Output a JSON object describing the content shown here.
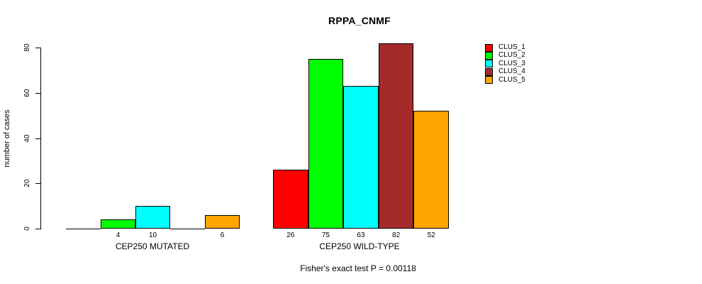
{
  "title": "RPPA_CNMF",
  "subtitle": "Fisher's exact test P = 0.00118",
  "y_axis": {
    "label": "number of cases",
    "ticks": [
      0,
      20,
      40,
      60,
      80
    ]
  },
  "legend": [
    {
      "label": "CLUS_1",
      "color": "#FF0000"
    },
    {
      "label": "CLUS_2",
      "color": "#00FF00"
    },
    {
      "label": "CLUS_3",
      "color": "#00FFFF"
    },
    {
      "label": "CLUS_4",
      "color": "#A52A2A"
    },
    {
      "label": "CLUS_5",
      "color": "#FFA500"
    }
  ],
  "chart_data": {
    "type": "bar",
    "title": "RPPA_CNMF",
    "ylabel": "number of cases",
    "ylim": [
      0,
      80
    ],
    "grid": false,
    "legend_position": "right",
    "categories": [
      "CEP250 MUTATED",
      "CEP250 WILD-TYPE"
    ],
    "series": [
      {
        "name": "CLUS_1",
        "color": "#FF0000",
        "values": [
          0,
          26
        ]
      },
      {
        "name": "CLUS_2",
        "color": "#00FF00",
        "values": [
          4,
          75
        ]
      },
      {
        "name": "CLUS_3",
        "color": "#00FFFF",
        "values": [
          10,
          63
        ]
      },
      {
        "name": "CLUS_4",
        "color": "#A52A2A",
        "values": [
          0,
          82
        ]
      },
      {
        "name": "CLUS_5",
        "color": "#FFA500",
        "values": [
          6,
          52
        ]
      }
    ],
    "bar_value_labels": [
      [
        null,
        4,
        10,
        null,
        6
      ],
      [
        26,
        75,
        63,
        82,
        52
      ]
    ],
    "annotation": "Fisher's exact test P = 0.00118"
  }
}
